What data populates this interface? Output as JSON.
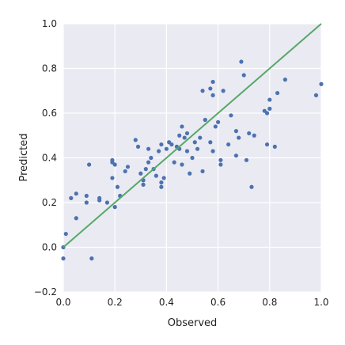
{
  "chart_data": {
    "type": "scatter",
    "title": "",
    "xlabel": "Observed",
    "ylabel": "Predicted",
    "xlim": [
      0.0,
      1.0
    ],
    "ylim": [
      -0.2,
      1.0
    ],
    "x_ticks": [
      "0.0",
      "0.2",
      "0.4",
      "0.6",
      "0.8",
      "1.0"
    ],
    "y_ticks": [
      "−0.2",
      "0.0",
      "0.2",
      "0.4",
      "0.6",
      "0.8",
      "1.0"
    ],
    "grid": true,
    "colors": {
      "background": "#EAEAF2",
      "grid": "#FFFFFF",
      "points": "#4C72B0",
      "line": "#55A868"
    },
    "points": [
      {
        "x": 0.0,
        "y": -0.05
      },
      {
        "x": 0.0,
        "y": 0.0
      },
      {
        "x": 0.01,
        "y": 0.06
      },
      {
        "x": 0.03,
        "y": 0.22
      },
      {
        "x": 0.05,
        "y": 0.24
      },
      {
        "x": 0.05,
        "y": 0.13
      },
      {
        "x": 0.09,
        "y": 0.2
      },
      {
        "x": 0.09,
        "y": 0.23
      },
      {
        "x": 0.1,
        "y": 0.37
      },
      {
        "x": 0.11,
        "y": -0.05
      },
      {
        "x": 0.14,
        "y": 0.21
      },
      {
        "x": 0.14,
        "y": 0.22
      },
      {
        "x": 0.17,
        "y": 0.2
      },
      {
        "x": 0.19,
        "y": 0.38
      },
      {
        "x": 0.19,
        "y": 0.39
      },
      {
        "x": 0.19,
        "y": 0.31
      },
      {
        "x": 0.2,
        "y": 0.37
      },
      {
        "x": 0.2,
        "y": 0.18
      },
      {
        "x": 0.21,
        "y": 0.27
      },
      {
        "x": 0.22,
        "y": 0.23
      },
      {
        "x": 0.24,
        "y": 0.34
      },
      {
        "x": 0.25,
        "y": 0.36
      },
      {
        "x": 0.28,
        "y": 0.48
      },
      {
        "x": 0.29,
        "y": 0.45
      },
      {
        "x": 0.3,
        "y": 0.33
      },
      {
        "x": 0.31,
        "y": 0.28
      },
      {
        "x": 0.31,
        "y": 0.3
      },
      {
        "x": 0.32,
        "y": 0.35
      },
      {
        "x": 0.33,
        "y": 0.38
      },
      {
        "x": 0.33,
        "y": 0.44
      },
      {
        "x": 0.34,
        "y": 0.4
      },
      {
        "x": 0.35,
        "y": 0.35
      },
      {
        "x": 0.36,
        "y": 0.32
      },
      {
        "x": 0.37,
        "y": 0.43
      },
      {
        "x": 0.38,
        "y": 0.46
      },
      {
        "x": 0.38,
        "y": 0.29
      },
      {
        "x": 0.38,
        "y": 0.27
      },
      {
        "x": 0.39,
        "y": 0.31
      },
      {
        "x": 0.4,
        "y": 0.44
      },
      {
        "x": 0.41,
        "y": 0.47
      },
      {
        "x": 0.42,
        "y": 0.46
      },
      {
        "x": 0.43,
        "y": 0.38
      },
      {
        "x": 0.44,
        "y": 0.45
      },
      {
        "x": 0.45,
        "y": 0.5
      },
      {
        "x": 0.45,
        "y": 0.44
      },
      {
        "x": 0.46,
        "y": 0.54
      },
      {
        "x": 0.46,
        "y": 0.37
      },
      {
        "x": 0.47,
        "y": 0.49
      },
      {
        "x": 0.48,
        "y": 0.43
      },
      {
        "x": 0.48,
        "y": 0.51
      },
      {
        "x": 0.49,
        "y": 0.33
      },
      {
        "x": 0.5,
        "y": 0.4
      },
      {
        "x": 0.51,
        "y": 0.47
      },
      {
        "x": 0.52,
        "y": 0.44
      },
      {
        "x": 0.53,
        "y": 0.49
      },
      {
        "x": 0.54,
        "y": 0.34
      },
      {
        "x": 0.54,
        "y": 0.7
      },
      {
        "x": 0.55,
        "y": 0.57
      },
      {
        "x": 0.57,
        "y": 0.71
      },
      {
        "x": 0.57,
        "y": 0.47
      },
      {
        "x": 0.58,
        "y": 0.43
      },
      {
        "x": 0.58,
        "y": 0.68
      },
      {
        "x": 0.58,
        "y": 0.74
      },
      {
        "x": 0.59,
        "y": 0.54
      },
      {
        "x": 0.6,
        "y": 0.56
      },
      {
        "x": 0.61,
        "y": 0.39
      },
      {
        "x": 0.61,
        "y": 0.37
      },
      {
        "x": 0.62,
        "y": 0.7
      },
      {
        "x": 0.64,
        "y": 0.46
      },
      {
        "x": 0.65,
        "y": 0.59
      },
      {
        "x": 0.67,
        "y": 0.52
      },
      {
        "x": 0.67,
        "y": 0.41
      },
      {
        "x": 0.68,
        "y": 0.49
      },
      {
        "x": 0.69,
        "y": 0.83
      },
      {
        "x": 0.7,
        "y": 0.77
      },
      {
        "x": 0.71,
        "y": 0.39
      },
      {
        "x": 0.72,
        "y": 0.51
      },
      {
        "x": 0.73,
        "y": 0.27
      },
      {
        "x": 0.74,
        "y": 0.5
      },
      {
        "x": 0.78,
        "y": 0.61
      },
      {
        "x": 0.79,
        "y": 0.6
      },
      {
        "x": 0.79,
        "y": 0.46
      },
      {
        "x": 0.8,
        "y": 0.66
      },
      {
        "x": 0.8,
        "y": 0.62
      },
      {
        "x": 0.82,
        "y": 0.45
      },
      {
        "x": 0.83,
        "y": 0.69
      },
      {
        "x": 0.86,
        "y": 0.75
      },
      {
        "x": 0.98,
        "y": 0.68
      },
      {
        "x": 1.0,
        "y": 0.73
      }
    ],
    "line": {
      "x": [
        0.0,
        1.0
      ],
      "y": [
        0.0,
        1.0
      ]
    }
  }
}
